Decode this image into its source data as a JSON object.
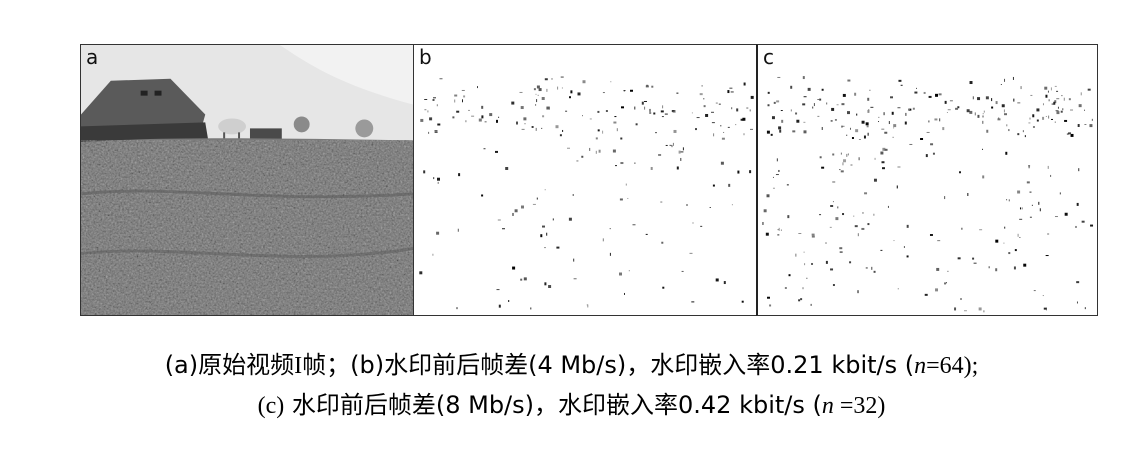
{
  "figure": {
    "panels": [
      {
        "label": "a",
        "kind": "photo"
      },
      {
        "label": "b",
        "kind": "difference-map",
        "seed": 7
      },
      {
        "label": "c",
        "kind": "difference-map",
        "seed": 19
      }
    ]
  },
  "caption": {
    "line1": {
      "a_tag": "(a)",
      "a_text": "原始视频I帧；",
      "b_tag": "(b)",
      "b_text": "水印前后帧差(4 Mb/s)，水印嵌入率0.21 kbit/s (",
      "n": "n",
      "eq": "=64);"
    },
    "line2": {
      "c_tag": "(c)",
      "c_text": " 水印前后帧差(8 Mb/s)，水印嵌入率0.42 kbit/s (",
      "n": "n",
      "eq": " =32)"
    }
  }
}
